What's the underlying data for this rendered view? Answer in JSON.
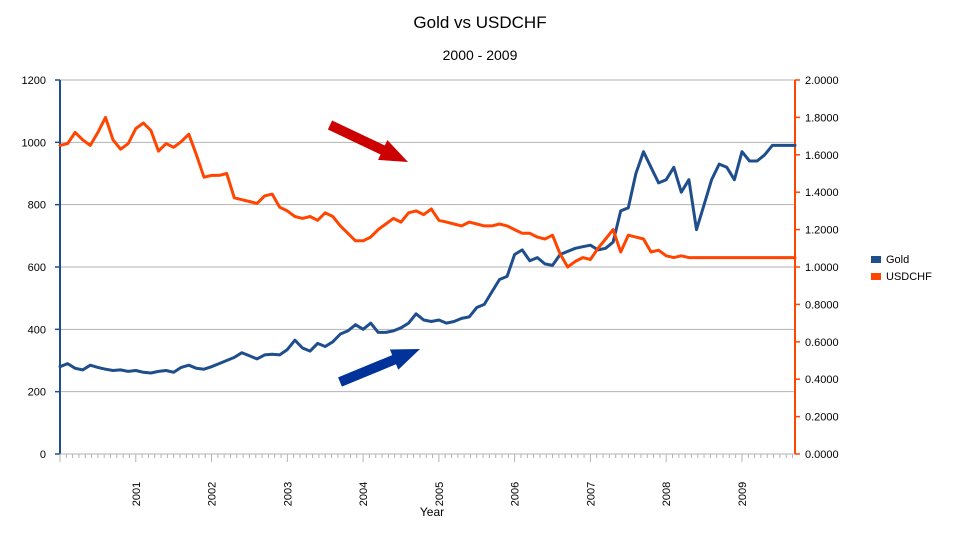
{
  "chart_data": {
    "type": "line",
    "title": "Gold vs USDCHF",
    "subtitle": "2000 - 2009",
    "xlabel": "Year",
    "ylabel_left": "",
    "ylabel_right": "",
    "xlim": [
      2000.0,
      2009.7
    ],
    "ylim_left": [
      0,
      1200
    ],
    "ylim_right": [
      0,
      2.0
    ],
    "left_ticks": [
      "0",
      "200",
      "400",
      "600",
      "800",
      "1000",
      "1200"
    ],
    "right_ticks": [
      "0.0000",
      "0.2000",
      "0.4000",
      "0.6000",
      "0.8000",
      "1.0000",
      "1.2000",
      "1.4000",
      "1.6000",
      "1.8000",
      "2.0000"
    ],
    "x_tick_labels": [
      "2001",
      "2002",
      "2003",
      "2004",
      "2005",
      "2006",
      "2007",
      "2008",
      "2009"
    ],
    "grid": true,
    "legend_position": "right",
    "series": [
      {
        "name": "Gold",
        "axis": "left",
        "color": "#1f4e8c",
        "x": [
          2000.0,
          2000.1,
          2000.2,
          2000.3,
          2000.4,
          2000.5,
          2000.6,
          2000.7,
          2000.8,
          2000.9,
          2001.0,
          2001.1,
          2001.2,
          2001.3,
          2001.4,
          2001.5,
          2001.6,
          2001.7,
          2001.8,
          2001.9,
          2002.0,
          2002.1,
          2002.2,
          2002.3,
          2002.4,
          2002.5,
          2002.6,
          2002.7,
          2002.8,
          2002.9,
          2003.0,
          2003.1,
          2003.2,
          2003.3,
          2003.4,
          2003.5,
          2003.6,
          2003.7,
          2003.8,
          2003.9,
          2004.0,
          2004.1,
          2004.2,
          2004.3,
          2004.4,
          2004.5,
          2004.6,
          2004.7,
          2004.8,
          2004.9,
          2005.0,
          2005.1,
          2005.2,
          2005.3,
          2005.4,
          2005.5,
          2005.6,
          2005.7,
          2005.8,
          2005.9,
          2006.0,
          2006.1,
          2006.2,
          2006.3,
          2006.4,
          2006.5,
          2006.6,
          2006.7,
          2006.8,
          2006.9,
          2007.0,
          2007.1,
          2007.2,
          2007.3,
          2007.4,
          2007.5,
          2007.6,
          2007.7,
          2007.8,
          2007.9,
          2008.0,
          2008.1,
          2008.2,
          2008.3,
          2008.4,
          2008.5,
          2008.6,
          2008.7,
          2008.8,
          2008.9,
          2009.0,
          2009.1,
          2009.2,
          2009.3,
          2009.4,
          2009.5,
          2009.6,
          2009.7
        ],
        "values": [
          280,
          290,
          275,
          270,
          285,
          278,
          272,
          268,
          270,
          265,
          268,
          262,
          260,
          265,
          268,
          262,
          278,
          285,
          275,
          272,
          280,
          290,
          300,
          310,
          325,
          315,
          305,
          318,
          320,
          318,
          335,
          365,
          340,
          330,
          355,
          345,
          360,
          385,
          395,
          415,
          400,
          420,
          390,
          390,
          395,
          405,
          420,
          450,
          430,
          425,
          430,
          420,
          425,
          435,
          440,
          470,
          480,
          520,
          560,
          570,
          640,
          655,
          620,
          630,
          610,
          605,
          640,
          650,
          660,
          665,
          670,
          655,
          660,
          680,
          780,
          790,
          900,
          970,
          920,
          870,
          880,
          920,
          840,
          880,
          720,
          800,
          880,
          930,
          920,
          880,
          970,
          940,
          940,
          960,
          990,
          990,
          990,
          990
        ]
      },
      {
        "name": "USDCHF",
        "axis": "right",
        "color": "#ff4500",
        "x": [
          2000.0,
          2000.1,
          2000.2,
          2000.3,
          2000.4,
          2000.5,
          2000.6,
          2000.7,
          2000.8,
          2000.9,
          2001.0,
          2001.1,
          2001.2,
          2001.3,
          2001.4,
          2001.5,
          2001.6,
          2001.7,
          2001.8,
          2001.9,
          2002.0,
          2002.1,
          2002.2,
          2002.3,
          2002.4,
          2002.5,
          2002.6,
          2002.7,
          2002.8,
          2002.9,
          2003.0,
          2003.1,
          2003.2,
          2003.3,
          2003.4,
          2003.5,
          2003.6,
          2003.7,
          2003.8,
          2003.9,
          2004.0,
          2004.1,
          2004.2,
          2004.3,
          2004.4,
          2004.5,
          2004.6,
          2004.7,
          2004.8,
          2004.9,
          2005.0,
          2005.1,
          2005.2,
          2005.3,
          2005.4,
          2005.5,
          2005.6,
          2005.7,
          2005.8,
          2005.9,
          2006.0,
          2006.1,
          2006.2,
          2006.3,
          2006.4,
          2006.5,
          2006.6,
          2006.7,
          2006.8,
          2006.9,
          2007.0,
          2007.1,
          2007.2,
          2007.3,
          2007.4,
          2007.5,
          2007.6,
          2007.7,
          2007.8,
          2007.9,
          2008.0,
          2008.1,
          2008.2,
          2008.3,
          2008.4,
          2008.5,
          2008.6,
          2008.7,
          2008.8,
          2008.9,
          2009.0,
          2009.1,
          2009.2,
          2009.3,
          2009.4,
          2009.5,
          2009.6,
          2009.7
        ],
        "values": [
          1.65,
          1.66,
          1.72,
          1.68,
          1.65,
          1.72,
          1.8,
          1.68,
          1.63,
          1.66,
          1.74,
          1.77,
          1.73,
          1.62,
          1.66,
          1.64,
          1.67,
          1.71,
          1.6,
          1.48,
          1.49,
          1.49,
          1.5,
          1.37,
          1.36,
          1.35,
          1.34,
          1.38,
          1.39,
          1.32,
          1.3,
          1.27,
          1.26,
          1.27,
          1.25,
          1.29,
          1.27,
          1.22,
          1.18,
          1.14,
          1.14,
          1.16,
          1.2,
          1.23,
          1.26,
          1.24,
          1.29,
          1.3,
          1.28,
          1.31,
          1.25,
          1.24,
          1.23,
          1.22,
          1.24,
          1.23,
          1.22,
          1.22,
          1.23,
          1.22,
          1.2,
          1.18,
          1.18,
          1.16,
          1.15,
          1.17,
          1.07,
          1.0,
          1.03,
          1.05,
          1.04,
          1.1,
          1.15,
          1.2,
          1.08,
          1.17,
          1.16,
          1.15,
          1.08,
          1.09,
          1.06,
          1.05,
          1.06,
          1.05,
          1.05,
          1.05,
          1.05,
          1.05,
          1.05,
          1.05,
          1.05,
          1.05,
          1.05,
          1.05,
          1.05,
          1.05,
          1.05,
          1.05
        ]
      }
    ],
    "annotations": [
      {
        "type": "arrow",
        "direction": "down-right",
        "color": "#cc0000"
      },
      {
        "type": "arrow",
        "direction": "up-right",
        "color": "#003399"
      }
    ]
  }
}
